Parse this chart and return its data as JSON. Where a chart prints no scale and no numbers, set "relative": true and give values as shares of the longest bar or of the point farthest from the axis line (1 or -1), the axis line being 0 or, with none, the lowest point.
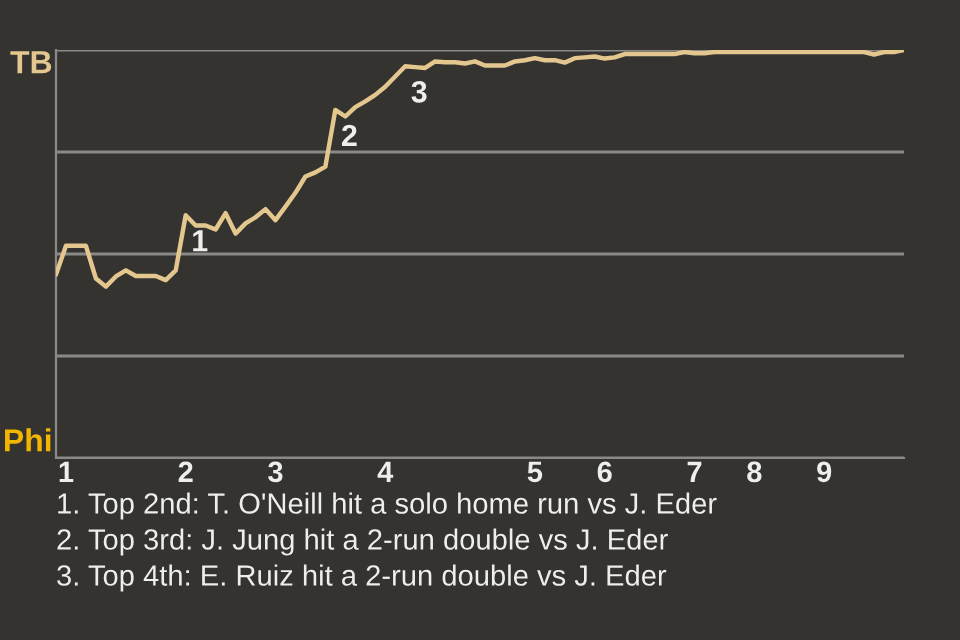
{
  "chart_data": {
    "type": "line",
    "relative": true,
    "categories": [
      null,
      "1",
      null,
      null,
      null,
      null,
      null,
      null,
      null,
      null,
      null,
      null,
      null,
      "2",
      null,
      null,
      null,
      null,
      null,
      null,
      null,
      null,
      "3",
      null,
      null,
      null,
      null,
      null,
      null,
      null,
      null,
      null,
      null,
      "4",
      null,
      null,
      null,
      null,
      null,
      null,
      null,
      null,
      null,
      null,
      null,
      null,
      null,
      null,
      "5",
      null,
      null,
      null,
      null,
      null,
      null,
      "6",
      null,
      null,
      null,
      null,
      null,
      null,
      null,
      null,
      "7",
      null,
      null,
      null,
      null,
      null,
      "8",
      null,
      null,
      null,
      null,
      null,
      null,
      "9",
      null,
      null,
      null,
      null,
      null,
      null,
      null,
      null
    ],
    "series": [
      {
        "values": [
          0.45,
          0.52,
          0.52,
          0.52,
          0.44,
          0.42,
          0.445,
          0.46,
          0.446,
          0.446,
          0.446,
          0.436,
          0.46,
          0.595,
          0.57,
          0.57,
          0.56,
          0.6,
          0.55,
          0.575,
          0.59,
          0.61,
          0.583,
          0.616,
          0.65,
          0.69,
          0.7,
          0.714,
          0.853,
          0.837,
          0.86,
          0.874,
          0.89,
          0.91,
          0.935,
          0.96,
          0.958,
          0.956,
          0.972,
          0.97,
          0.97,
          0.967,
          0.972,
          0.962,
          0.962,
          0.962,
          0.972,
          0.975,
          0.98,
          0.975,
          0.975,
          0.969,
          0.98,
          0.982,
          0.984,
          0.979,
          0.982,
          0.99,
          0.99,
          0.99,
          0.99,
          0.99,
          0.99,
          0.995,
          0.992,
          0.992,
          0.995,
          0.995,
          0.995,
          0.995,
          0.995,
          0.995,
          0.995,
          0.995,
          0.995,
          0.995,
          0.995,
          0.995,
          0.995,
          0.995,
          0.995,
          0.995,
          0.989,
          0.995,
          0.995,
          1
        ],
        "color": "#e3c78e"
      }
    ],
    "grid": "y",
    "annotations": [
      "TB",
      "Phi",
      {
        "text": "1",
        "y": 0.595
      },
      {
        "text": "2",
        "y": 0.853
      },
      {
        "text": "3",
        "y": 0.96
      },
      "1. Top 2nd: T. O'Neill hit a solo home run vs J. Eder",
      "2. Top 3rd: J. Jung hit a 2-run double vs J. Eder",
      "3. Top 4th: E. Ruiz hit a 2-run double vs J. Eder"
    ]
  }
}
